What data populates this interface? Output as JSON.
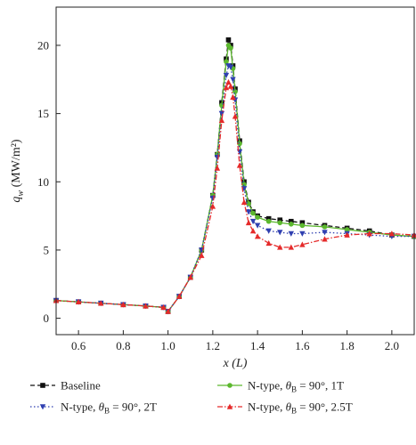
{
  "chart_data": {
    "type": "line",
    "xlabel": "x (L)",
    "ylabel": "q_w (MW/m²)",
    "xlim": [
      0.5,
      2.1
    ],
    "ylim": [
      -1.2,
      22.8
    ],
    "xticks": [
      0.6,
      0.8,
      1.0,
      1.2,
      1.4,
      1.6,
      1.8,
      2.0
    ],
    "yticks": [
      0,
      5,
      10,
      15,
      20
    ],
    "xtick_labels": [
      "0.6",
      "0.8",
      "1.0",
      "1.2",
      "1.4",
      "1.6",
      "1.8",
      "2.0"
    ],
    "ytick_labels": [
      "0",
      "5",
      "10",
      "15",
      "20"
    ],
    "grid": false,
    "legend_position": "bottom",
    "series": [
      {
        "name": "Baseline",
        "label_parts": [
          "Baseline"
        ],
        "color": "#111111",
        "marker": "square",
        "dash": "dash",
        "x": [
          0.5,
          0.6,
          0.7,
          0.8,
          0.9,
          0.98,
          1.0,
          1.05,
          1.1,
          1.15,
          1.2,
          1.22,
          1.24,
          1.26,
          1.27,
          1.28,
          1.29,
          1.3,
          1.32,
          1.34,
          1.36,
          1.38,
          1.4,
          1.45,
          1.5,
          1.55,
          1.6,
          1.7,
          1.8,
          1.9,
          2.0,
          2.1
        ],
        "y": [
          1.3,
          1.2,
          1.1,
          1.0,
          0.9,
          0.8,
          0.5,
          1.6,
          3.0,
          5.0,
          9.0,
          12.0,
          15.8,
          19.0,
          20.4,
          20.0,
          18.5,
          16.8,
          13.0,
          10.0,
          8.5,
          7.8,
          7.5,
          7.3,
          7.2,
          7.1,
          7.0,
          6.8,
          6.6,
          6.4,
          6.1,
          6.0
        ]
      },
      {
        "name": "N-type, θB = 90°, 1T",
        "label_parts": [
          "N-type, ",
          "θ",
          "B",
          " = 90°, 1T"
        ],
        "color": "#5cb82e",
        "marker": "circle",
        "dash": "solid",
        "x": [
          0.5,
          0.6,
          0.7,
          0.8,
          0.9,
          0.98,
          1.0,
          1.05,
          1.1,
          1.15,
          1.2,
          1.22,
          1.24,
          1.26,
          1.27,
          1.28,
          1.29,
          1.3,
          1.32,
          1.34,
          1.36,
          1.38,
          1.4,
          1.45,
          1.5,
          1.55,
          1.6,
          1.7,
          1.8,
          1.9,
          2.0,
          2.1
        ],
        "y": [
          1.3,
          1.2,
          1.1,
          1.0,
          0.9,
          0.8,
          0.5,
          1.6,
          3.0,
          5.0,
          9.0,
          12.0,
          15.6,
          18.8,
          20.0,
          19.8,
          18.3,
          16.6,
          12.8,
          9.8,
          8.4,
          7.7,
          7.4,
          7.1,
          7.0,
          6.9,
          6.8,
          6.7,
          6.5,
          6.3,
          6.1,
          6.0
        ]
      },
      {
        "name": "N-type, θB = 90°, 2T",
        "label_parts": [
          "N-type, ",
          "θ",
          "B",
          " = 90°, 2T"
        ],
        "color": "#2f3fb0",
        "marker": "triangle-down",
        "dash": "dot",
        "x": [
          0.5,
          0.6,
          0.7,
          0.8,
          0.9,
          0.98,
          1.0,
          1.05,
          1.1,
          1.15,
          1.2,
          1.22,
          1.24,
          1.26,
          1.27,
          1.28,
          1.29,
          1.3,
          1.32,
          1.34,
          1.36,
          1.38,
          1.4,
          1.45,
          1.5,
          1.55,
          1.6,
          1.7,
          1.8,
          1.9,
          2.0,
          2.1
        ],
        "y": [
          1.3,
          1.2,
          1.1,
          1.0,
          0.9,
          0.8,
          0.5,
          1.6,
          3.0,
          5.0,
          8.8,
          11.8,
          15.0,
          17.8,
          18.5,
          18.4,
          17.5,
          16.0,
          12.2,
          9.5,
          7.8,
          7.1,
          6.8,
          6.4,
          6.3,
          6.2,
          6.2,
          6.3,
          6.2,
          6.1,
          6.0,
          6.0
        ]
      },
      {
        "name": "N-type, θB = 90°, 2.5T",
        "label_parts": [
          "N-type, ",
          "θ",
          "B",
          " = 90°, 2.5T"
        ],
        "color": "#e52a2a",
        "marker": "triangle-up",
        "dash": "dashdot",
        "x": [
          0.5,
          0.6,
          0.7,
          0.8,
          0.9,
          0.98,
          1.0,
          1.05,
          1.1,
          1.15,
          1.2,
          1.22,
          1.24,
          1.26,
          1.27,
          1.28,
          1.29,
          1.3,
          1.32,
          1.34,
          1.36,
          1.38,
          1.4,
          1.45,
          1.5,
          1.55,
          1.6,
          1.7,
          1.8,
          1.9,
          2.0,
          2.1
        ],
        "y": [
          1.3,
          1.2,
          1.1,
          1.0,
          0.9,
          0.8,
          0.5,
          1.6,
          3.0,
          4.6,
          8.2,
          11.0,
          14.5,
          16.9,
          17.3,
          17.0,
          16.2,
          14.8,
          11.2,
          8.5,
          7.0,
          6.4,
          6.0,
          5.5,
          5.2,
          5.2,
          5.4,
          5.8,
          6.1,
          6.2,
          6.2,
          6.1
        ]
      }
    ]
  }
}
